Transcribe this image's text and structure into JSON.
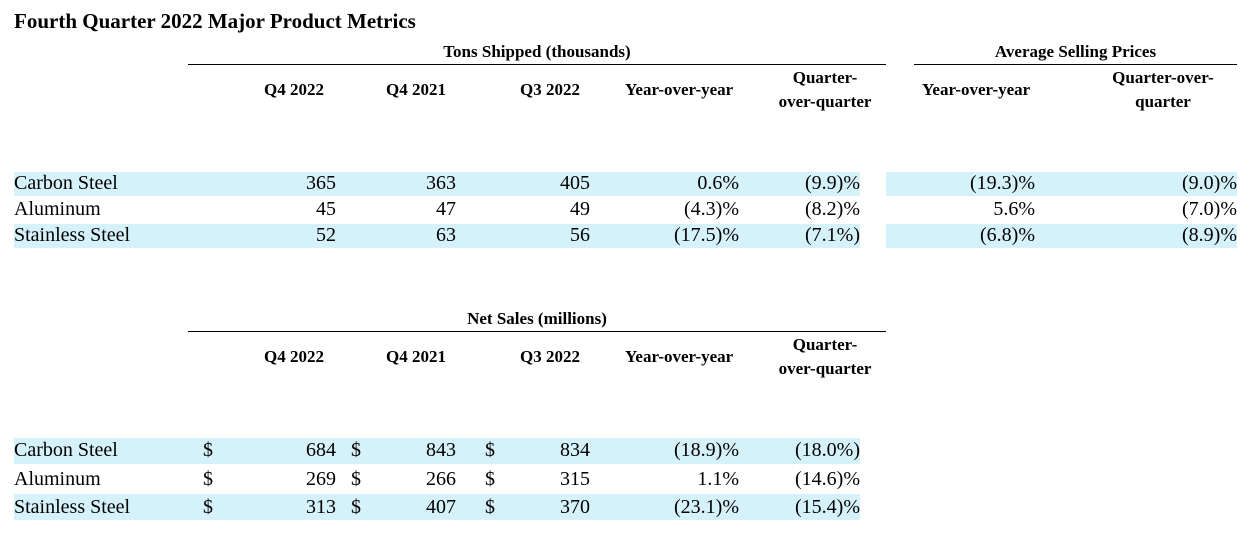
{
  "title": "Fourth Quarter 2022 Major Product Metrics",
  "colors": {
    "row_highlight": "#d5f1fa"
  },
  "tons_shipped": {
    "group_label": "Tons Shipped (thousands)",
    "headers": [
      "Q4 2022",
      "Q4 2021",
      "Q3 2022",
      "Year-over-year",
      "Quarter-",
      "over-quarter"
    ],
    "rows": [
      {
        "label": "Carbon Steel",
        "q4_2022": "365",
        "q4_2021": "363",
        "q3_2022": "405",
        "yoy": "0.6%",
        "qoq": "(9.9)%"
      },
      {
        "label": "Aluminum",
        "q4_2022": "45",
        "q4_2021": "47",
        "q3_2022": "49",
        "yoy": "(4.3)%",
        "qoq": "(8.2)%"
      },
      {
        "label": "Stainless Steel",
        "q4_2022": "52",
        "q4_2021": "63",
        "q3_2022": "56",
        "yoy": "(17.5)%",
        "qoq": "(7.1%)"
      }
    ]
  },
  "average_selling_prices": {
    "group_label": "Average Selling Prices",
    "headers": [
      "Year-over-year",
      "Quarter-over-",
      "quarter"
    ],
    "rows": [
      {
        "yoy": "(19.3)%",
        "qoq": "(9.0)%"
      },
      {
        "yoy": "5.6%",
        "qoq": "(7.0)%"
      },
      {
        "yoy": "(6.8)%",
        "qoq": "(8.9)%"
      }
    ]
  },
  "net_sales": {
    "group_label": "Net Sales (millions)",
    "headers": [
      "Q4 2022",
      "Q4 2021",
      "Q3 2022",
      "Year-over-year",
      "Quarter-",
      "over-quarter"
    ],
    "currency_symbol": "$",
    "rows": [
      {
        "label": "Carbon Steel",
        "q4_2022": "684",
        "q4_2021": "843",
        "q3_2022": "834",
        "yoy": "(18.9)%",
        "qoq": "(18.0%)"
      },
      {
        "label": "Aluminum",
        "q4_2022": "269",
        "q4_2021": "266",
        "q3_2022": "315",
        "yoy": "1.1%",
        "qoq": "(14.6)%"
      },
      {
        "label": "Stainless Steel",
        "q4_2022": "313",
        "q4_2021": "407",
        "q3_2022": "370",
        "yoy": "(23.1)%",
        "qoq": "(15.4)%"
      }
    ]
  }
}
